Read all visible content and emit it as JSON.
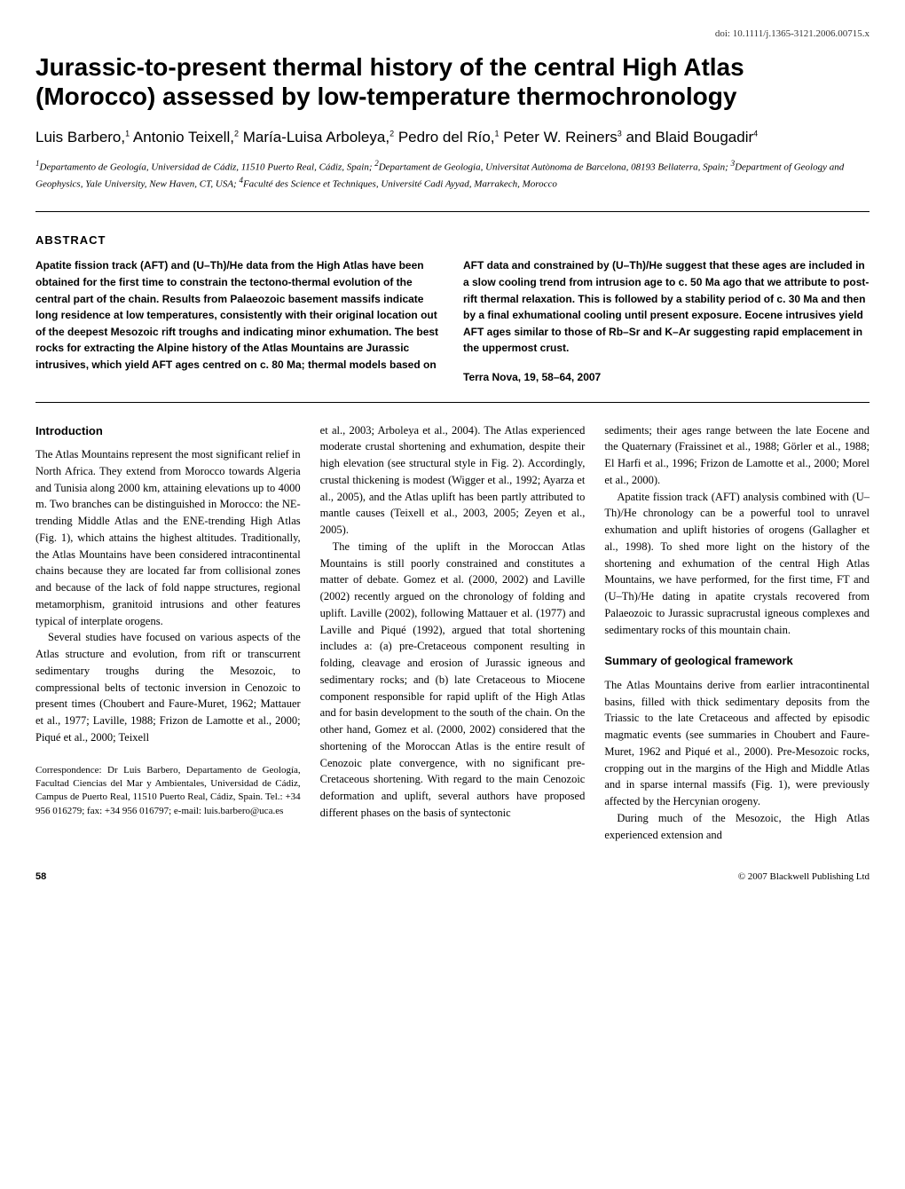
{
  "doi": "doi: 10.1111/j.1365-3121.2006.00715.x",
  "title": "Jurassic-to-present thermal history of the central High Atlas (Morocco) assessed by low-temperature thermochronology",
  "authors_html": "Luis Barbero,<span class='sup'>1</span> Antonio Teixell,<span class='sup'>2</span> María-Luisa Arboleya,<span class='sup'>2</span> Pedro del Río,<span class='sup'>1</span> Peter W. Reiners<span class='sup'>3</span> and Blaid Bougadir<span class='sup'>4</span>",
  "affiliations_html": "<span class='sup'>1</span>Departamento de Geología, Universidad de Cádiz, 11510 Puerto Real, Cádiz, Spain; <span class='sup'>2</span>Departament de Geologia, Universitat Autònoma de Barcelona, 08193 Bellaterra, Spain; <span class='sup'>3</span>Department of Geology and Geophysics, Yale University, New Haven, CT, USA; <span class='sup'>4</span>Faculté des Science et Techniques, Université Cadi Ayyad, Marrakech, Morocco",
  "abstract_heading": "ABSTRACT",
  "abstract_left": "Apatite fission track (AFT) and (U–Th)/He data from the High Atlas have been obtained for the first time to constrain the tectono-thermal evolution of the central part of the chain. Results from Palaeozoic basement massifs indicate long residence at low temperatures, consistently with their original location out of the deepest Mesozoic rift troughs and indicating minor exhumation. The best rocks for extracting the Alpine history of the Atlas Mountains are Jurassic intrusives, which yield AFT ages centred on c. 80 Ma; thermal models based on",
  "abstract_right": "AFT data and constrained by (U–Th)/He suggest that these ages are included in a slow cooling trend from intrusion age to c. 50 Ma ago that we attribute to post-rift thermal relaxation. This is followed by a stability period of c. 30 Ma and then by a final exhumational cooling until present exposure. Eocene intrusives yield AFT ages similar to those of Rb–Sr and K–Ar suggesting rapid emplacement in the uppermost crust.",
  "citation": "Terra Nova, 19, 58–64, 2007",
  "sections": {
    "introduction_heading": "Introduction",
    "summary_heading": "Summary of geological framework"
  },
  "col1": {
    "p1": "The Atlas Mountains represent the most significant relief in North Africa. They extend from Morocco towards Algeria and Tunisia along 2000 km, attaining elevations up to 4000 m. Two branches can be distinguished in Morocco: the NE-trending Middle Atlas and the ENE-trending High Atlas (Fig. 1), which attains the highest altitudes. Traditionally, the Atlas Mountains have been considered intracontinental chains because they are located far from collisional zones and because of the lack of fold nappe structures, regional metamorphism, granitoid intrusions and other features typical of interplate orogens.",
    "p2": "Several studies have focused on various aspects of the Atlas structure and evolution, from rift or transcurrent sedimentary troughs during the Mesozoic, to compressional belts of tectonic inversion in Cenozoic to present times (Choubert and Faure-Muret, 1962; Mattauer et al., 1977; Laville, 1988; Frizon de Lamotte et al., 2000; Piqué et al., 2000; Teixell",
    "correspondence": "Correspondence: Dr Luis Barbero, Departamento de Geología, Facultad Ciencias del Mar y Ambientales, Universidad de Cádiz, Campus de Puerto Real, 11510 Puerto Real, Cádiz, Spain. Tel.: +34 956 016279; fax: +34 956 016797; e-mail: luis.barbero@uca.es"
  },
  "col2": {
    "p1": "et al., 2003; Arboleya et al., 2004). The Atlas experienced moderate crustal shortening and exhumation, despite their high elevation (see structural style in Fig. 2). Accordingly, crustal thickening is modest (Wigger et al., 1992; Ayarza et al., 2005), and the Atlas uplift has been partly attributed to mantle causes (Teixell et al., 2003, 2005; Zeyen et al., 2005).",
    "p2": "The timing of the uplift in the Moroccan Atlas Mountains is still poorly constrained and constitutes a matter of debate. Gomez et al. (2000, 2002) and Laville (2002) recently argued on the chronology of folding and uplift. Laville (2002), following Mattauer et al. (1977) and Laville and Piqué (1992), argued that total shortening includes a: (a) pre-Cretaceous component resulting in folding, cleavage and erosion of Jurassic igneous and sedimentary rocks; and (b) late Cretaceous to Miocene component responsible for rapid uplift of the High Atlas and for basin development to the south of the chain. On the other hand, Gomez et al. (2000, 2002) considered that the shortening of the Moroccan Atlas is the entire result of Cenozoic plate convergence, with no significant pre-Cretaceous shortening. With regard to the main Cenozoic deformation and uplift, several authors have proposed different phases on the basis of syntectonic"
  },
  "col3": {
    "p1": "sediments; their ages range between the late Eocene and the Quaternary (Fraissinet et al., 1988; Görler et al., 1988; El Harfi et al., 1996; Frizon de Lamotte et al., 2000; Morel et al., 2000).",
    "p2": "Apatite fission track (AFT) analysis combined with (U–Th)/He chronology can be a powerful tool to unravel exhumation and uplift histories of orogens (Gallagher et al., 1998). To shed more light on the history of the shortening and exhumation of the central High Atlas Mountains, we have performed, for the first time, FT and (U–Th)/He dating in apatite crystals recovered from Palaeozoic to Jurassic supracrustal igneous complexes and sedimentary rocks of this mountain chain.",
    "p3": "The Atlas Mountains derive from earlier intracontinental basins, filled with thick sedimentary deposits from the Triassic to the late Cretaceous and affected by episodic magmatic events (see summaries in Choubert and Faure-Muret, 1962 and Piqué et al., 2000). Pre-Mesozoic rocks, cropping out in the margins of the High and Middle Atlas and in sparse internal massifs (Fig. 1), were previously affected by the Hercynian orogeny.",
    "p4": "During much of the Mesozoic, the High Atlas experienced extension and"
  },
  "footer": {
    "page": "58",
    "copyright": "© 2007 Blackwell Publishing Ltd"
  }
}
